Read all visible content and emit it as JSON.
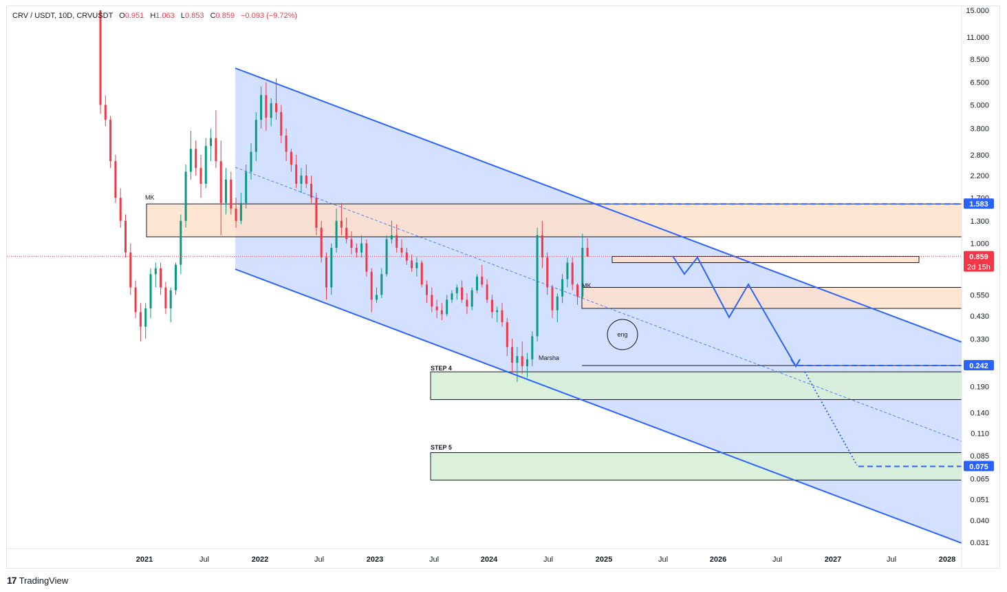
{
  "legend": {
    "symbol": "CRV / USDT, 10D, CRVUSDT",
    "open_label": "O",
    "open": "0.951",
    "high_label": "H",
    "high": "1.063",
    "low_label": "L",
    "low": "0.853",
    "close_label": "C",
    "close": "0.859",
    "change": "−0.093 (−9.72%)"
  },
  "footer": {
    "brand": "TradingView"
  },
  "colors": {
    "up": "#089981",
    "down": "#f23645",
    "channel": "#2962ff",
    "zone_orange": "#ffe0c8",
    "zone_green": "#d8efd8"
  },
  "chart_data": {
    "type": "candlestick",
    "y_scale": "log",
    "y_ticks": [
      "15.000",
      "11.000",
      "8.500",
      "6.500",
      "5.000",
      "3.800",
      "2.800",
      "2.200",
      "1.700",
      "1.300",
      "1.000",
      "0.550",
      "0.430",
      "0.330",
      "0.190",
      "0.140",
      "0.110",
      "0.085",
      "0.065",
      "0.051",
      "0.040",
      "0.031"
    ],
    "x_ticks": [
      {
        "label": "2021",
        "year": true
      },
      {
        "label": "Jul",
        "year": false
      },
      {
        "label": "2022",
        "year": true
      },
      {
        "label": "Jul",
        "year": false
      },
      {
        "label": "2023",
        "year": true
      },
      {
        "label": "Jul",
        "year": false
      },
      {
        "label": "2024",
        "year": true
      },
      {
        "label": "Jul",
        "year": false
      },
      {
        "label": "2025",
        "year": true
      },
      {
        "label": "Jul",
        "year": false
      },
      {
        "label": "2026",
        "year": true
      },
      {
        "label": "Jul",
        "year": false
      },
      {
        "label": "2027",
        "year": true
      },
      {
        "label": "Jul",
        "year": false
      },
      {
        "label": "2028",
        "year": true
      }
    ],
    "price_badges": [
      {
        "label": "1.583",
        "color": "#2962ff"
      },
      {
        "label": "0.859",
        "color": "#f23645",
        "sub": "2d 15h"
      },
      {
        "label": "0.242",
        "color": "#2962ff"
      },
      {
        "label": "0.075",
        "color": "#2962ff"
      }
    ],
    "annotations": {
      "mk1": "MK",
      "mk2": "MK",
      "marsha": "Marsha",
      "eng": "eng",
      "step4": "STEP 4",
      "step5": "STEP 5"
    },
    "levels": {
      "resistance_top": 1.583,
      "resistance_bottom": 1.08,
      "mid_zone_top": 0.6,
      "mid_zone_bottom": 0.47,
      "small_zone_top": 0.86,
      "small_zone_bottom": 0.8,
      "support_line": 0.242,
      "step4_top": 0.225,
      "step4_bottom": 0.163,
      "step5_top": 0.088,
      "step5_bottom": 0.064,
      "target_075": 0.075
    },
    "candles": [
      [
        15.0,
        15.0,
        4.5,
        5.0
      ],
      [
        5.0,
        5.6,
        3.9,
        4.2
      ],
      [
        4.2,
        4.4,
        2.4,
        2.6
      ],
      [
        2.6,
        2.8,
        1.6,
        1.7
      ],
      [
        1.7,
        1.9,
        1.2,
        1.3
      ],
      [
        1.3,
        1.4,
        0.85,
        0.9
      ],
      [
        0.9,
        1.0,
        0.55,
        0.6
      ],
      [
        0.6,
        0.65,
        0.42,
        0.45
      ],
      [
        0.45,
        0.5,
        0.32,
        0.38
      ],
      [
        0.38,
        0.5,
        0.33,
        0.47
      ],
      [
        0.47,
        0.75,
        0.42,
        0.7
      ],
      [
        0.7,
        0.8,
        0.6,
        0.75
      ],
      [
        0.75,
        0.8,
        0.55,
        0.6
      ],
      [
        0.6,
        0.64,
        0.44,
        0.47
      ],
      [
        0.47,
        0.6,
        0.4,
        0.58
      ],
      [
        0.58,
        0.8,
        0.55,
        0.78
      ],
      [
        0.78,
        1.4,
        0.7,
        1.3
      ],
      [
        1.3,
        2.5,
        1.2,
        2.3
      ],
      [
        2.3,
        3.7,
        2.1,
        3.0
      ],
      [
        3.0,
        3.3,
        2.2,
        2.4
      ],
      [
        2.4,
        2.8,
        1.7,
        2.0
      ],
      [
        2.0,
        3.4,
        1.9,
        3.1
      ],
      [
        3.1,
        3.8,
        2.6,
        3.4
      ],
      [
        3.4,
        4.7,
        2.4,
        2.6
      ],
      [
        2.6,
        3.3,
        1.1,
        1.6
      ],
      [
        1.6,
        2.4,
        1.4,
        2.1
      ],
      [
        2.1,
        2.3,
        1.4,
        1.5
      ],
      [
        1.5,
        1.7,
        1.2,
        1.3
      ],
      [
        1.3,
        1.8,
        1.25,
        1.6
      ],
      [
        1.6,
        2.5,
        1.5,
        2.3
      ],
      [
        2.3,
        3.2,
        2.1,
        2.9
      ],
      [
        2.9,
        4.6,
        2.6,
        4.2
      ],
      [
        4.2,
        6.2,
        3.8,
        5.6
      ],
      [
        5.6,
        6.5,
        3.7,
        4.3
      ],
      [
        4.3,
        5.4,
        3.9,
        5.1
      ],
      [
        5.1,
        6.8,
        4.2,
        4.6
      ],
      [
        4.6,
        5.0,
        3.2,
        3.5
      ],
      [
        3.5,
        3.8,
        2.6,
        2.9
      ],
      [
        2.9,
        3.0,
        2.3,
        2.5
      ],
      [
        2.5,
        2.8,
        1.9,
        2.0
      ],
      [
        2.0,
        2.4,
        1.8,
        2.2
      ],
      [
        2.2,
        2.5,
        1.9,
        2.0
      ],
      [
        2.0,
        2.2,
        1.6,
        1.7
      ],
      [
        1.7,
        1.8,
        1.1,
        1.2
      ],
      [
        1.2,
        1.3,
        0.8,
        0.85
      ],
      [
        0.85,
        0.9,
        0.52,
        0.6
      ],
      [
        0.6,
        1.0,
        0.55,
        0.95
      ],
      [
        0.95,
        1.5,
        0.9,
        1.3
      ],
      [
        1.3,
        1.6,
        1.1,
        1.2
      ],
      [
        1.2,
        1.35,
        1.0,
        1.05
      ],
      [
        1.05,
        1.15,
        0.88,
        0.95
      ],
      [
        0.95,
        1.0,
        0.85,
        0.9
      ],
      [
        0.9,
        1.1,
        0.85,
        1.0
      ],
      [
        1.0,
        1.05,
        0.68,
        0.72
      ],
      [
        0.72,
        0.75,
        0.45,
        0.52
      ],
      [
        0.52,
        0.6,
        0.5,
        0.55
      ],
      [
        0.55,
        0.75,
        0.53,
        0.7
      ],
      [
        0.7,
        1.1,
        0.68,
        1.05
      ],
      [
        1.05,
        1.3,
        1.0,
        1.1
      ],
      [
        1.1,
        1.25,
        0.9,
        0.95
      ],
      [
        0.95,
        1.05,
        0.85,
        0.9
      ],
      [
        0.9,
        0.95,
        0.78,
        0.82
      ],
      [
        0.82,
        0.88,
        0.72,
        0.75
      ],
      [
        0.75,
        0.85,
        0.68,
        0.8
      ],
      [
        0.8,
        0.82,
        0.6,
        0.62
      ],
      [
        0.62,
        0.65,
        0.5,
        0.55
      ],
      [
        0.55,
        0.6,
        0.45,
        0.48
      ],
      [
        0.48,
        0.52,
        0.42,
        0.46
      ],
      [
        0.46,
        0.5,
        0.41,
        0.44
      ],
      [
        0.44,
        0.55,
        0.43,
        0.52
      ],
      [
        0.52,
        0.58,
        0.5,
        0.56
      ],
      [
        0.56,
        0.62,
        0.52,
        0.6
      ],
      [
        0.6,
        0.65,
        0.5,
        0.52
      ],
      [
        0.52,
        0.56,
        0.44,
        0.48
      ],
      [
        0.48,
        0.6,
        0.46,
        0.58
      ],
      [
        0.58,
        0.7,
        0.56,
        0.68
      ],
      [
        0.68,
        0.78,
        0.6,
        0.62
      ],
      [
        0.62,
        0.66,
        0.5,
        0.52
      ],
      [
        0.52,
        0.55,
        0.42,
        0.45
      ],
      [
        0.45,
        0.48,
        0.4,
        0.46
      ],
      [
        0.46,
        0.5,
        0.38,
        0.4
      ],
      [
        0.4,
        0.42,
        0.27,
        0.3
      ],
      [
        0.3,
        0.33,
        0.22,
        0.25
      ],
      [
        0.25,
        0.3,
        0.2,
        0.27
      ],
      [
        0.27,
        0.32,
        0.22,
        0.24
      ],
      [
        0.24,
        0.28,
        0.21,
        0.26
      ],
      [
        0.26,
        0.36,
        0.24,
        0.34
      ],
      [
        0.34,
        1.2,
        0.32,
        1.1
      ],
      [
        1.1,
        1.3,
        0.75,
        0.85
      ],
      [
        0.85,
        0.9,
        0.55,
        0.6
      ],
      [
        0.6,
        0.62,
        0.42,
        0.46
      ],
      [
        0.46,
        0.56,
        0.4,
        0.54
      ],
      [
        0.54,
        0.7,
        0.5,
        0.66
      ],
      [
        0.66,
        0.85,
        0.6,
        0.8
      ],
      [
        0.8,
        0.85,
        0.58,
        0.62
      ],
      [
        0.62,
        0.63,
        0.49,
        0.54
      ],
      [
        0.54,
        1.12,
        0.53,
        0.951
      ],
      [
        0.951,
        1.063,
        0.853,
        0.859
      ]
    ]
  }
}
